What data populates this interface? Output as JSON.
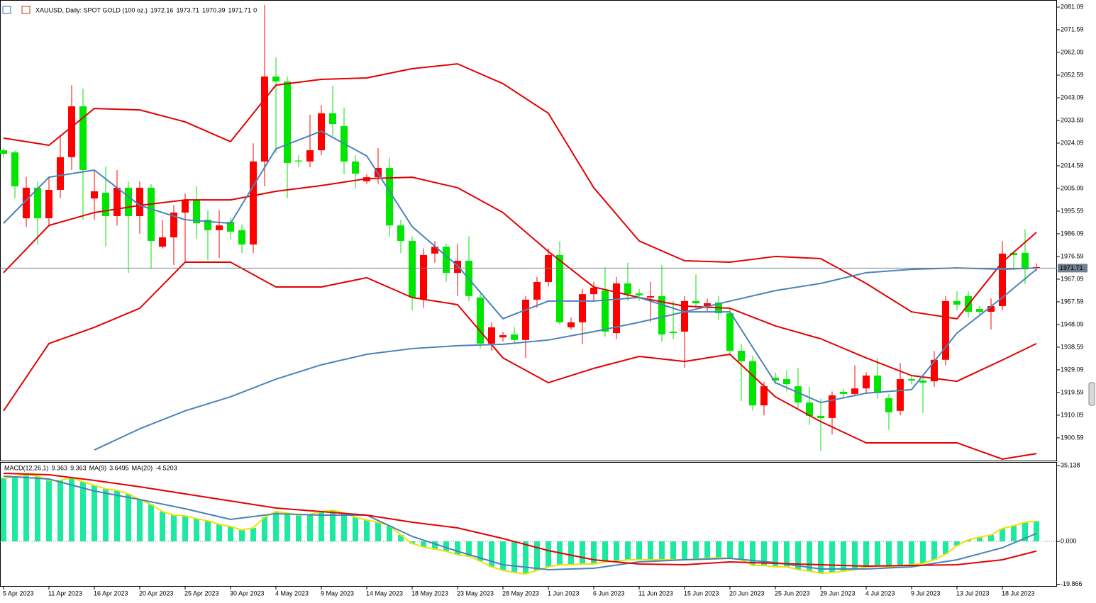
{
  "chart_data": [
    {
      "type": "candlestick",
      "title": "XAUUSD, Daily:  SPOT GOLD (100 oz.)",
      "volume": 0,
      "categories": [
        "5 Apr 2023",
        null,
        null,
        null,
        "11 Apr 2023",
        null,
        null,
        null,
        "16 Apr 2023",
        null,
        null,
        null,
        "20 Apr 2023",
        null,
        null,
        null,
        "25 Apr 2023",
        null,
        null,
        null,
        "30 Apr 2023",
        null,
        null,
        null,
        "4 May 2023",
        null,
        null,
        null,
        "9 May 2023",
        null,
        null,
        null,
        "14 May 2023",
        null,
        null,
        null,
        "18 May 2023",
        null,
        null,
        null,
        "23 May 2023",
        null,
        null,
        null,
        "28 May 2023",
        null,
        null,
        null,
        "1 Jun 2023",
        null,
        null,
        null,
        "6 Jun 2023",
        null,
        null,
        null,
        "11 Jun 2023",
        null,
        null,
        null,
        "15 Jun 2023",
        null,
        null,
        null,
        "20 Jun 2023",
        null,
        null,
        null,
        "25 Jun 2023",
        null,
        null,
        null,
        "29 Jun 2023",
        null,
        null,
        null,
        "4 Jul 2023",
        null,
        null,
        null,
        "9 Jul 2023",
        null,
        null,
        null,
        "13 Jul 2023",
        null,
        null,
        null,
        "18 Jul 2023",
        null,
        null,
        null
      ],
      "open": [
        2019.6,
        2006.0,
        2005.4,
        1992.6,
        2004.5,
        2018.2,
        2039.5,
        2012.8,
        2003.9,
        1993.5,
        2005.4,
        1993.5,
        2005.4,
        1983.1,
        1984.6,
        1995.0,
        2000.1,
        1990.5,
        1987.6,
        1989.6,
        1987.0,
        1981.6,
        2016.4,
        2052.0,
        2049.9,
        2015.8,
        2016.4,
        2021.1,
        2036.6,
        2032.1,
        2016.4,
        2011.3,
        2009.8,
        2013.7,
        1989.6,
        1983.1,
        1959.4,
        1977.2,
        1980.7,
        1969.7,
        1974.8,
        1960.0,
        1940.1,
        1946.9,
        1943.6,
        1941.6,
        1958.5,
        1965.9,
        1977.2,
        1949.0,
        1949.0,
        1960.8,
        1963.5,
        1945.1,
        1965.3,
        1960.8,
        1960.3,
        1960.0,
        1943.9,
        1944.5,
        1957.9,
        1957.0,
        1957.0,
        1952.8,
        1937.1,
        1932.7,
        1914.2,
        1922.2,
        1924.6,
        1923.1,
        1915.4,
        1909.8,
        1908.9,
        1918.4,
        1919.0,
        1921.3,
        1926.7,
        1919.3,
        1911.3,
        1925.2,
        1924.6,
        1923.7,
        1933.3,
        1957.9,
        1956.4,
        1953.4,
        1953.4,
        1955.8,
        1977.8,
        1977.2,
        1971.2,
        1972.16
      ],
      "high": [
        2022,
        2021.1,
        2010,
        2008,
        2010,
        2027.6,
        2048.4,
        2046.9,
        2012.8,
        2014.3,
        2012.8,
        2008,
        2008,
        2006.9,
        1992,
        1998,
        2003,
        2006,
        1996,
        1996,
        1993,
        1990,
        2024,
        2082,
        2060,
        2052,
        2019,
        2036,
        2040,
        2048,
        2039,
        2019,
        2011,
        2022,
        2018,
        1992,
        1985,
        1980,
        1983,
        1982,
        1982,
        1985,
        1961,
        1949,
        1945,
        1947,
        1960,
        1968,
        1980,
        1983,
        1951,
        1963,
        1966,
        1972,
        1968,
        1974,
        1963,
        1966,
        1973,
        1958,
        1960,
        1969,
        1959,
        1960,
        1955,
        1940,
        1935,
        1924,
        1928,
        1929,
        1930,
        1922,
        1917,
        1920,
        1921,
        1931,
        1928,
        1934,
        1919,
        1932,
        1927,
        1926,
        1937,
        1960,
        1962,
        1962,
        1956,
        1959,
        1983,
        1979,
        1988,
        1973.71
      ],
      "low": [
        2018,
        2001.0,
        1989,
        1981.6,
        1989,
        2001,
        2012.8,
        1992,
        1992,
        1980.7,
        1989.6,
        1969.7,
        1986.1,
        1971.8,
        1980,
        1973,
        1974,
        1984,
        1975,
        1976,
        1984,
        1978,
        1978,
        2006,
        2020,
        2001,
        2014,
        2014,
        2019,
        2027,
        2011,
        2005,
        2007,
        2007,
        1985,
        1978,
        1954,
        1955,
        1974,
        1966,
        1960,
        1958,
        1938,
        1937,
        1941,
        1940,
        1934,
        1955,
        1964,
        1948,
        1946,
        1940,
        1958,
        1943,
        1942,
        1958,
        1958,
        1949,
        1941,
        1942,
        1930,
        1955,
        1953,
        1950,
        1935,
        1916,
        1912,
        1910,
        1923,
        1920,
        1913,
        1906,
        1895,
        1902,
        1917,
        1918,
        1919,
        1917,
        1904,
        1910,
        1923,
        1911,
        1922,
        1931,
        1954,
        1951,
        1952,
        1946,
        1954,
        1971,
        1965,
        1970.39
      ],
      "close": [
        2021.1,
        2020.2,
        1992.6,
        2005.4,
        1992.6,
        2004.5,
        2018.2,
        2039.5,
        2000.9,
        2003.3,
        1993.5,
        2005.4,
        1993.5,
        2005.4,
        1980.7,
        1984.6,
        1995.0,
        2000.1,
        1992.0,
        1987.6,
        1991.1,
        1987.6,
        1981.6,
        2016.4,
        2052.0,
        2049.9,
        2016.8,
        2016.4,
        2021.1,
        2036.6,
        2031.2,
        2016.4,
        2008.1,
        2009.8,
        2013.7,
        1989.6,
        1983.1,
        1958.8,
        1977.8,
        1980.7,
        1969.7,
        1974.8,
        1959.4,
        1940.1,
        1942.7,
        1943.9,
        1941.6,
        1958.5,
        1965.9,
        1977.2,
        1946.9,
        1949.0,
        1960.8,
        1962.3,
        1944.5,
        1965.3,
        1961.1,
        1959.4,
        1960.0,
        1945.1,
        1945.1,
        1957.9,
        1955.8,
        1957.3,
        1952.8,
        1937.1,
        1932.7,
        1914.2,
        1925.8,
        1925.2,
        1922.2,
        1915.4,
        1909.8,
        1908.9,
        1919.9,
        1919.0,
        1921.3,
        1926.7,
        1917.2,
        1911.9,
        1925.2,
        1924.6,
        1924.3,
        1933.3,
        1957.9,
        1960.0,
        1954.6,
        1953.4,
        1955.8,
        1978.1,
        1978.1,
        1971.71
      ],
      "up_color": "#00e600",
      "down_color": "#ff0000",
      "price_line_color": "#708090",
      "overlay_x": [
        0,
        4,
        8,
        12,
        16,
        20,
        24,
        28,
        32,
        36,
        40,
        44,
        48,
        52,
        56,
        60,
        64,
        68,
        72,
        76,
        80,
        84,
        88,
        91
      ],
      "overlays": [
        {
          "color": "#e30000",
          "values": [
            2026.2,
            2023.2,
            2038.6,
            2038.0,
            2033.0,
            2024.7,
            2048.4,
            2050.8,
            2051.4,
            2055.3,
            2057.3,
            2049.0,
            2036.6,
            2005.4,
            1983.1,
            1974.8,
            1974.2,
            1976.6,
            1975.7,
            1965.3,
            1953.4,
            1950.5,
            1974.2,
            1986.7
          ]
        },
        {
          "color": "#e30000",
          "values": [
            1969.8,
            1989.6,
            1995.0,
            1998.0,
            2000.3,
            2000.3,
            2003.9,
            2006.3,
            2009.2,
            2009.8,
            2005.4,
            1995.0,
            1978.7,
            1963.8,
            1959.4,
            1955.8,
            1954.9,
            1947.5,
            1942.1,
            1934.1,
            1926.7,
            1924.3,
            1933.2,
            1940.1
          ]
        },
        {
          "color": "#e30000",
          "values": [
            1911.9,
            1940.1,
            1946.9,
            1954.9,
            1974.2,
            1974.2,
            1963.8,
            1963.8,
            1967.7,
            1959.4,
            1956.4,
            1934.1,
            1923.7,
            1929.7,
            1934.7,
            1932.6,
            1935.6,
            1917.8,
            1907.4,
            1898.5,
            1898.5,
            1898.5,
            1891.7,
            1894.0
          ]
        },
        {
          "color": "#4b82b8",
          "values": [
            1990.5,
            2009.8,
            2012.8,
            1998.0,
            1992.0,
            1990.5,
            2021.7,
            2029.1,
            2018.7,
            1989.1,
            1972.7,
            1950.5,
            1957.9,
            1957.9,
            1959.4,
            1953.4,
            1953.4,
            1923.7,
            1915.4,
            1919.3,
            1920.8,
            1944.5,
            1959.4,
            1971.2
          ]
        },
        {
          "color": "#4b82b8",
          "values": [
            null,
            null,
            1895.5,
            1904.4,
            1911.9,
            1917.8,
            1925.2,
            1931.2,
            1935.6,
            1938.0,
            1939.2,
            1939.8,
            1941.6,
            1945.1,
            1949.0,
            1953.4,
            1957.9,
            1962.3,
            1965.3,
            1969.8,
            1971.2,
            1971.8,
            1971.2,
            1971.8
          ]
        }
      ],
      "ylim": [
        1891.07,
        2084.06
      ],
      "yticks": [
        2081.09,
        2071.59,
        2062.09,
        2052.59,
        2043.09,
        2033.59,
        2024.09,
        2014.59,
        2005.09,
        1995.59,
        1986.09,
        1976.59,
        1967.09,
        1957.59,
        1948.09,
        1938.59,
        1929.09,
        1919.59,
        1910.09,
        1900.59
      ]
    },
    {
      "type": "macd",
      "title": "MACD(12,26,1)",
      "color": "#1de9a0",
      "signal_color": "#f0e000",
      "values": [
        29.23,
        29.88,
        30.87,
        30.21,
        28.24,
        28.24,
        29.56,
        27.59,
        25.94,
        24.3,
        23.65,
        22.0,
        19.38,
        17.08,
        13.79,
        12.15,
        11.82,
        10.51,
        9.52,
        7.88,
        6.9,
        5.25,
        6.24,
        11.17,
        13.79,
        13.14,
        12.15,
        12.48,
        13.79,
        14.45,
        13.14,
        11.17,
        9.85,
        8.87,
        7.22,
        2.96,
        -0.99,
        -2.63,
        -3.61,
        -4.6,
        -6.24,
        -6.9,
        -9.2,
        -11.82,
        -13.46,
        -14.45,
        -15.11,
        -13.46,
        -11.82,
        -10.84,
        -10.84,
        -10.51,
        -10.51,
        -9.52,
        -9.2,
        -8.54,
        -8.54,
        -8.54,
        -8.54,
        -8.54,
        -8.54,
        -8.21,
        -7.88,
        -7.55,
        -7.88,
        -8.54,
        -11.17,
        -11.17,
        -11.82,
        -11.82,
        -13.14,
        -13.79,
        -14.78,
        -14.45,
        -13.79,
        -13.14,
        -11.82,
        -11.17,
        -11.82,
        -11.17,
        -10.84,
        -10.18,
        -8.54,
        -5.91,
        -1.97,
        0.66,
        1.97,
        2.96,
        5.91,
        7.22,
        8.87,
        9.363
      ],
      "overlay_x": [
        0,
        4,
        8,
        12,
        16,
        20,
        24,
        28,
        32,
        36,
        40,
        44,
        48,
        52,
        56,
        60,
        64,
        68,
        72,
        76,
        80,
        84,
        88,
        91
      ],
      "overlays": [
        {
          "label": "MA(9)",
          "color": "#4b82b8",
          "values": [
            30.21,
            28.9,
            23.32,
            19.38,
            15.11,
            10.18,
            12.81,
            12.15,
            12.15,
            2.3,
            -4.6,
            -10.84,
            -13.14,
            -12.48,
            -9.52,
            -8.54,
            -7.88,
            -9.85,
            -12.81,
            -12.81,
            -11.82,
            -8.54,
            -2.96,
            3.6495
          ]
        },
        {
          "label": "MA(20)",
          "color": "#e30000",
          "values": [
            31.53,
            30.87,
            28.24,
            25.29,
            22.0,
            18.72,
            15.43,
            13.79,
            12.15,
            8.87,
            6.24,
            1.31,
            -4.27,
            -8.54,
            -10.51,
            -10.84,
            -9.52,
            -10.18,
            -10.84,
            -11.49,
            -11.17,
            -10.84,
            -8.54,
            -4.5203
          ]
        }
      ],
      "ylim": [
        -21.02,
        36.78
      ],
      "yticks": [
        35.138,
        {
          "value": 0,
          "label": "0.000"
        },
        -19.866
      ]
    }
  ]
}
